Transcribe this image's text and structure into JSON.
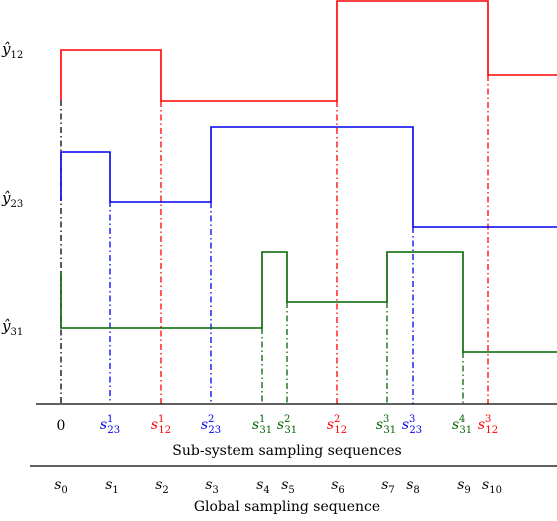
{
  "signals": [
    {
      "id": "y12",
      "label_base": "ŷ",
      "label_sub": "12",
      "color": "#ff0000"
    },
    {
      "id": "y23",
      "label_base": "ŷ",
      "label_sub": "23",
      "color": "#0000ee"
    },
    {
      "id": "y31",
      "label_base": "ŷ",
      "label_sub": "31",
      "color": "#006400"
    }
  ],
  "sub_ticks": [
    {
      "base": "0",
      "sup": "",
      "sub": "",
      "color": "#000000"
    },
    {
      "base": "s",
      "sup": "1",
      "sub": "23",
      "color": "#0000ee"
    },
    {
      "base": "s",
      "sup": "1",
      "sub": "12",
      "color": "#ff0000"
    },
    {
      "base": "s",
      "sup": "2",
      "sub": "23",
      "color": "#0000ee"
    },
    {
      "base": "s",
      "sup": "1",
      "sub": "31",
      "color": "#006400"
    },
    {
      "base": "s",
      "sup": "2",
      "sub": "31",
      "color": "#006400"
    },
    {
      "base": "s",
      "sup": "2",
      "sub": "12",
      "color": "#ff0000"
    },
    {
      "base": "s",
      "sup": "3",
      "sub": "31",
      "color": "#006400"
    },
    {
      "base": "s",
      "sup": "3",
      "sub": "23",
      "color": "#0000ee"
    },
    {
      "base": "s",
      "sup": "4",
      "sub": "31",
      "color": "#006400"
    },
    {
      "base": "s",
      "sup": "3",
      "sub": "12",
      "color": "#ff0000"
    }
  ],
  "sub_caption": "Sub-system sampling sequences",
  "global_ticks": [
    {
      "base": "s",
      "sub": "0"
    },
    {
      "base": "s",
      "sub": "1"
    },
    {
      "base": "s",
      "sub": "2"
    },
    {
      "base": "s",
      "sub": "3"
    },
    {
      "base": "s",
      "sub": "4"
    },
    {
      "base": "s",
      "sub": "5"
    },
    {
      "base": "s",
      "sub": "6"
    },
    {
      "base": "s",
      "sub": "7"
    },
    {
      "base": "s",
      "sub": "8"
    },
    {
      "base": "s",
      "sub": "9"
    },
    {
      "base": "s",
      "sub": "10"
    }
  ],
  "global_caption": "Global sampling sequence"
}
